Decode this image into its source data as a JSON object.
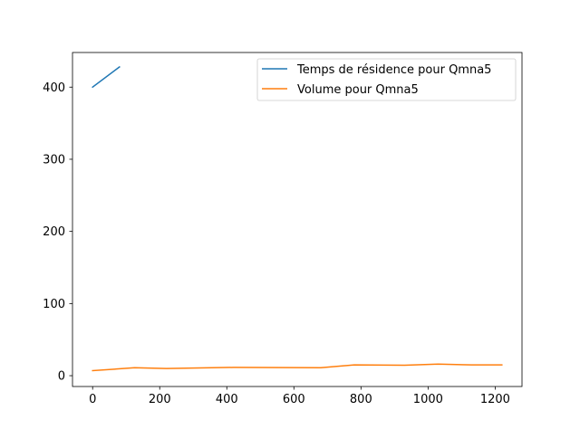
{
  "chart_data": {
    "type": "line",
    "title": "",
    "xlabel": "",
    "ylabel": "",
    "xlim": [
      -60,
      1280
    ],
    "ylim": [
      -15,
      448
    ],
    "x_ticks": [
      0,
      200,
      400,
      600,
      800,
      1000,
      1200
    ],
    "y_ticks": [
      0,
      100,
      200,
      300,
      400
    ],
    "x_tick_labels": [
      "0",
      "200",
      "400",
      "600",
      "800",
      "1000",
      "1200"
    ],
    "y_tick_labels": [
      "0",
      "100",
      "200",
      "300",
      "400"
    ],
    "grid": false,
    "legend_position": "top-right",
    "series": [
      {
        "name": "Temps de résidence pour Qmna5",
        "color": "#1f77b4",
        "points": [
          [
            0,
            400
          ],
          [
            80,
            428
          ]
        ]
      },
      {
        "name": "Volume pour Qmna5",
        "color": "#ff7f0e",
        "points": [
          [
            0,
            7
          ],
          [
            125,
            11
          ],
          [
            220,
            10
          ],
          [
            420,
            11.5
          ],
          [
            680,
            11
          ],
          [
            780,
            15
          ],
          [
            930,
            14.5
          ],
          [
            1030,
            16
          ],
          [
            1130,
            15
          ],
          [
            1220,
            15
          ]
        ]
      }
    ]
  }
}
